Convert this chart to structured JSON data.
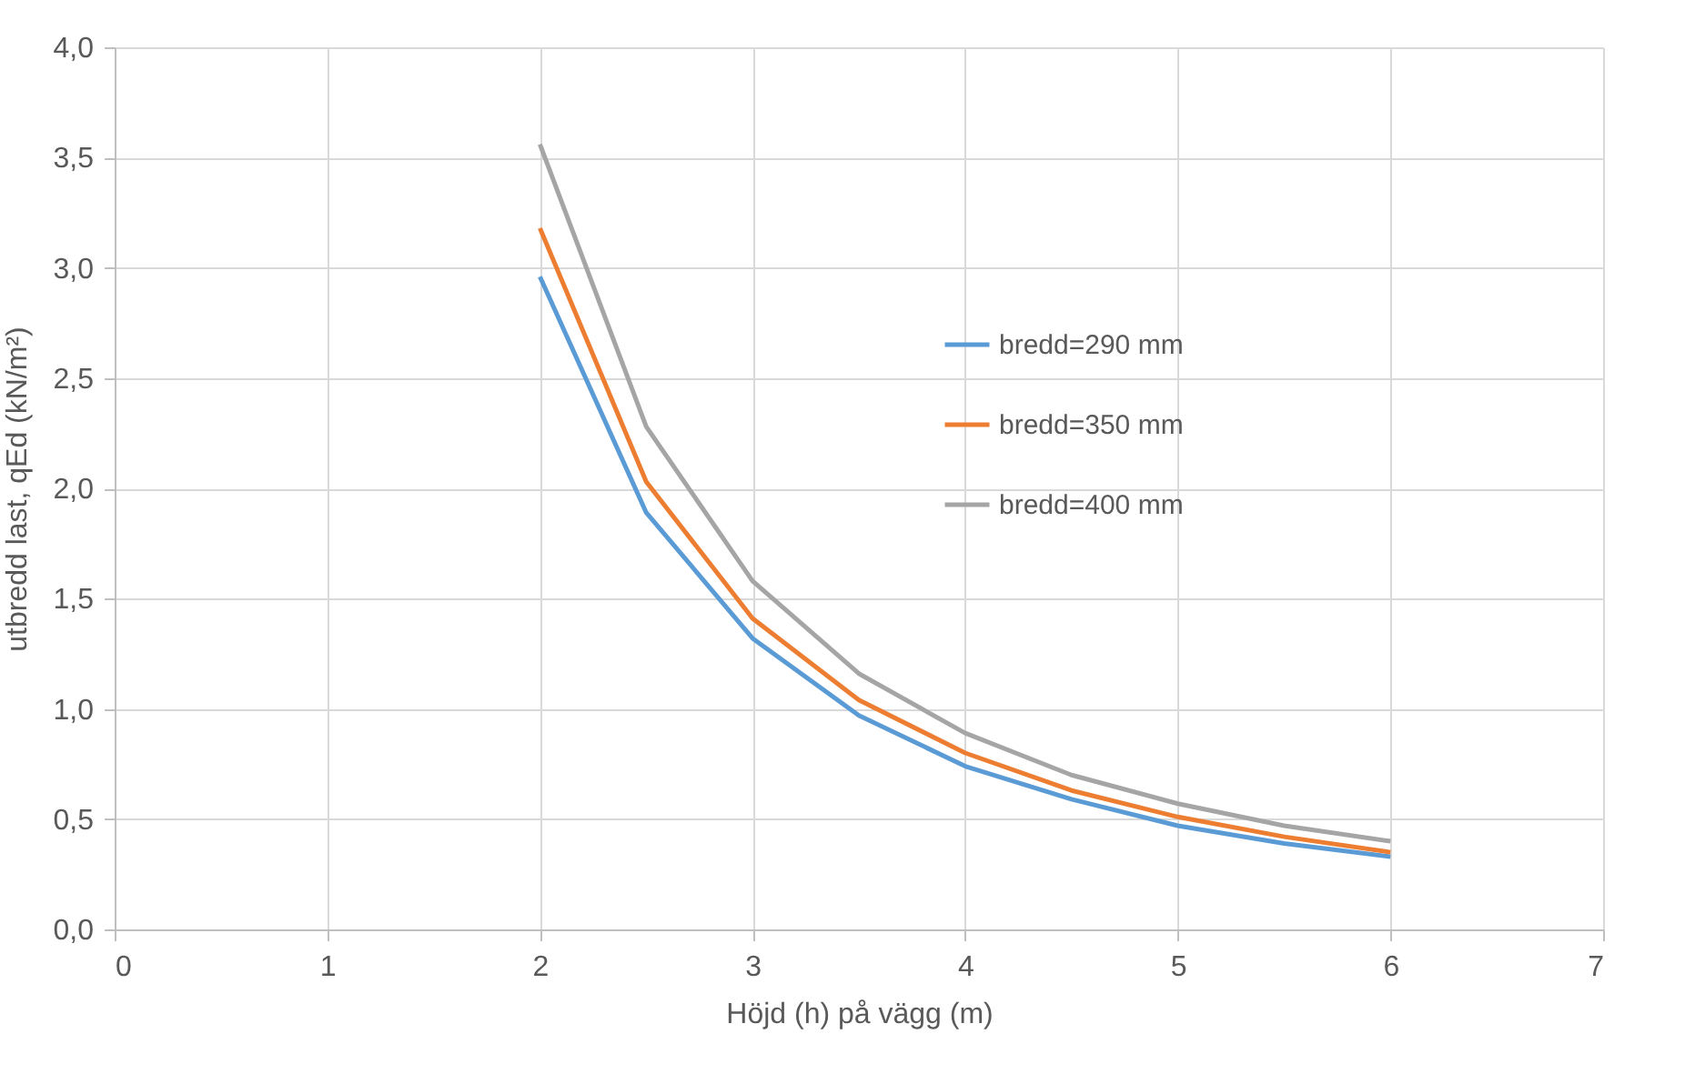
{
  "chart_data": {
    "type": "line",
    "xlabel": "Höjd (h) på vägg (m)",
    "ylabel": "utbredd last, qEd  (kN/m²)",
    "x": [
      2,
      2.5,
      3,
      3.5,
      4,
      4.5,
      5,
      5.5,
      6
    ],
    "series": [
      {
        "name": "bredd=290 mm",
        "color": "#5b9bd5",
        "values": [
          2.96,
          1.89,
          1.32,
          0.97,
          0.74,
          0.59,
          0.47,
          0.39,
          0.33
        ]
      },
      {
        "name": "bredd=350 mm",
        "color": "#ed7d31",
        "values": [
          3.18,
          2.03,
          1.41,
          1.04,
          0.8,
          0.63,
          0.51,
          0.42,
          0.35
        ]
      },
      {
        "name": "bredd=400 mm",
        "color": "#a5a5a5",
        "values": [
          3.56,
          2.28,
          1.58,
          1.16,
          0.89,
          0.7,
          0.57,
          0.47,
          0.4
        ]
      }
    ],
    "xlim": [
      0,
      7
    ],
    "xticks": [
      0,
      1,
      2,
      3,
      4,
      5,
      6,
      7
    ],
    "ylim": [
      0,
      4
    ],
    "yticks": [
      {
        "value": 0,
        "label": "0,0"
      },
      {
        "value": 0.5,
        "label": "0,5"
      },
      {
        "value": 1,
        "label": "1,0"
      },
      {
        "value": 1.5,
        "label": "1,5"
      },
      {
        "value": 2,
        "label": "2,0"
      },
      {
        "value": 2.5,
        "label": "2,5"
      },
      {
        "value": 3,
        "label": "3,0"
      },
      {
        "value": 3.5,
        "label": "3,5"
      },
      {
        "value": 4,
        "label": "4,0"
      }
    ],
    "grid": true,
    "legend": "right",
    "marker": "none",
    "line_style": "solid"
  }
}
